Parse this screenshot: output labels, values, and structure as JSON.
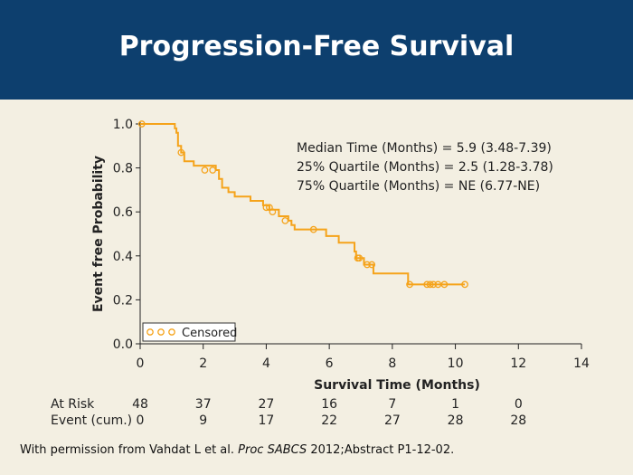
{
  "slide": {
    "title": "Progression-Free Survival",
    "footer": {
      "prefix": "With permission from Vahdat L et al. ",
      "journal": "Proc SABCS",
      "suffix": " 2012;Abstract P1-12-02."
    }
  },
  "colors": {
    "banner": "#0d3f6e",
    "background": "#f3efe2",
    "curve": "#f5a31a"
  },
  "chart_data": {
    "type": "line",
    "subtype": "kaplan-meier",
    "xlabel": "Survival Time (Months)",
    "ylabel": "Event free Probability",
    "xlim": [
      0,
      14
    ],
    "ylim": [
      0,
      1.0
    ],
    "xticks": [
      0,
      2,
      4,
      6,
      8,
      10,
      12,
      14
    ],
    "yticks": [
      0.0,
      0.2,
      0.4,
      0.6,
      0.8,
      1.0
    ],
    "ytick_labels": [
      "0.0",
      "0.2",
      "0.4",
      "0.6",
      "0.8",
      "1.0"
    ],
    "grid": false,
    "legend": {
      "position": "bottom-left",
      "label": "Censored",
      "marker": "open-circle"
    },
    "annotations": [
      "Median Time (Months) = 5.9 (3.48-7.39)",
      "25% Quartile (Months) = 2.5 (1.28-3.78)",
      "75% Quartile (Months) = NE (6.77-NE)"
    ],
    "series": [
      {
        "steps": [
          [
            0,
            1.0
          ],
          [
            1.0,
            1.0
          ],
          [
            1.1,
            0.98
          ],
          [
            1.15,
            0.96
          ],
          [
            1.2,
            0.9
          ],
          [
            1.3,
            0.87
          ],
          [
            1.4,
            0.83
          ],
          [
            1.7,
            0.81
          ],
          [
            2.4,
            0.79
          ],
          [
            2.5,
            0.75
          ],
          [
            2.6,
            0.71
          ],
          [
            2.8,
            0.69
          ],
          [
            3.0,
            0.67
          ],
          [
            3.5,
            0.65
          ],
          [
            3.9,
            0.63
          ],
          [
            4.1,
            0.61
          ],
          [
            4.4,
            0.58
          ],
          [
            4.7,
            0.56
          ],
          [
            4.8,
            0.54
          ],
          [
            4.9,
            0.52
          ],
          [
            5.9,
            0.49
          ],
          [
            6.3,
            0.46
          ],
          [
            6.8,
            0.42
          ],
          [
            6.85,
            0.39
          ],
          [
            7.1,
            0.36
          ],
          [
            7.4,
            0.32
          ],
          [
            8.5,
            0.27
          ],
          [
            10.3,
            0.27
          ]
        ],
        "censored": [
          [
            0.05,
            1.0
          ],
          [
            1.3,
            0.87
          ],
          [
            2.05,
            0.79
          ],
          [
            2.3,
            0.79
          ],
          [
            4.0,
            0.62
          ],
          [
            4.1,
            0.62
          ],
          [
            4.2,
            0.6
          ],
          [
            4.6,
            0.56
          ],
          [
            5.5,
            0.52
          ],
          [
            6.9,
            0.39
          ],
          [
            6.95,
            0.39
          ],
          [
            7.2,
            0.36
          ],
          [
            7.35,
            0.36
          ],
          [
            8.55,
            0.27
          ],
          [
            9.1,
            0.27
          ],
          [
            9.2,
            0.27
          ],
          [
            9.3,
            0.27
          ],
          [
            9.45,
            0.27
          ],
          [
            9.65,
            0.27
          ],
          [
            10.3,
            0.27
          ]
        ]
      }
    ],
    "risk_table": {
      "times": [
        0,
        2,
        4,
        6,
        8,
        10,
        12
      ],
      "rows": [
        {
          "label": "At Risk",
          "values": [
            "48",
            "37",
            "27",
            "16",
            "7",
            "1",
            "0"
          ]
        },
        {
          "label": "Event (cum.)",
          "values": [
            "0",
            "9",
            "17",
            "22",
            "27",
            "28",
            "28"
          ]
        }
      ]
    }
  }
}
